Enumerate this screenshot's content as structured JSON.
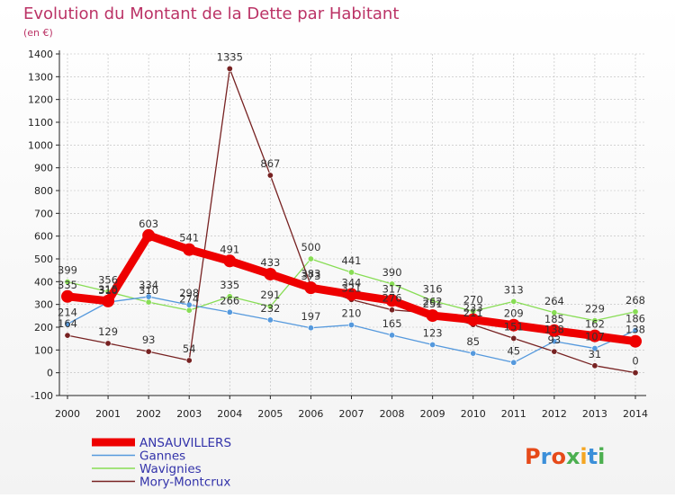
{
  "chart_data": {
    "type": "line",
    "title": "Evolution du Montant de la Dette par Habitant",
    "subtitle": "(en €)",
    "xlabel": "",
    "ylabel": "",
    "ylim": [
      -100,
      1400
    ],
    "yticks": [
      "-100",
      "0",
      "100",
      "200",
      "300",
      "400",
      "500",
      "600",
      "700",
      "800",
      "900",
      "1000",
      "1100",
      "1200",
      "1300",
      "1400"
    ],
    "categories": [
      "2000",
      "2001",
      "2002",
      "2003",
      "2004",
      "2005",
      "2006",
      "2007",
      "2008",
      "2009",
      "2010",
      "2011",
      "2012",
      "2013",
      "2014"
    ],
    "series": [
      {
        "name": "ANSAUVILLERS",
        "color": "#ee0000",
        "values": [
          335,
          315,
          603,
          541,
          491,
          433,
          373,
          344,
          317,
          251,
          233,
          209,
          185,
          162,
          138
        ],
        "labels": [
          "335",
          "315",
          "603",
          "541",
          "491",
          "433",
          "373",
          "344",
          "317",
          "251",
          "233",
          "209",
          "185",
          "162",
          "138"
        ]
      },
      {
        "name": "Gannes",
        "color": "#5599dd",
        "values": [
          214,
          310,
          334,
          298,
          266,
          232,
          197,
          210,
          165,
          123,
          85,
          45,
          138,
          107,
          186
        ],
        "labels": [
          "214",
          "310",
          "334",
          "298",
          "266",
          "232",
          "197",
          "210",
          "165",
          "123",
          "85",
          "45",
          "138",
          "107",
          "186"
        ]
      },
      {
        "name": "Wavignies",
        "color": "#88dd55",
        "values": [
          399,
          356,
          310,
          274,
          335,
          291,
          500,
          441,
          390,
          316,
          270,
          313,
          264,
          229,
          268
        ],
        "labels": [
          "399",
          "356",
          "310",
          "274",
          "335",
          "291",
          "500",
          "441",
          "390",
          "316",
          "270",
          "313",
          "264",
          "229",
          "268"
        ]
      },
      {
        "name": "Mory-Montcrux",
        "color": "#772222",
        "values": [
          164,
          129,
          93,
          54,
          1335,
          867,
          383,
          321,
          276,
          262,
          211,
          151,
          93,
          31,
          0
        ],
        "labels": [
          "164",
          "129",
          "93",
          "54",
          "1335",
          "867",
          "383",
          "321",
          "276",
          "262",
          "211",
          "151",
          "93",
          "31",
          "0"
        ]
      }
    ]
  },
  "brand": {
    "logo_text": "Proxiti",
    "colors": [
      "#e64a19",
      "#3b8fd9",
      "#e64a19",
      "#4caf50",
      "#f5a623",
      "#3b8fd9",
      "#4caf50"
    ]
  },
  "style": {
    "title_color": "#bb3366",
    "axis_color": "#222222",
    "grid_color": "#bbbbbb",
    "legend_text_color": "#3333aa",
    "label_color": "#333333"
  }
}
